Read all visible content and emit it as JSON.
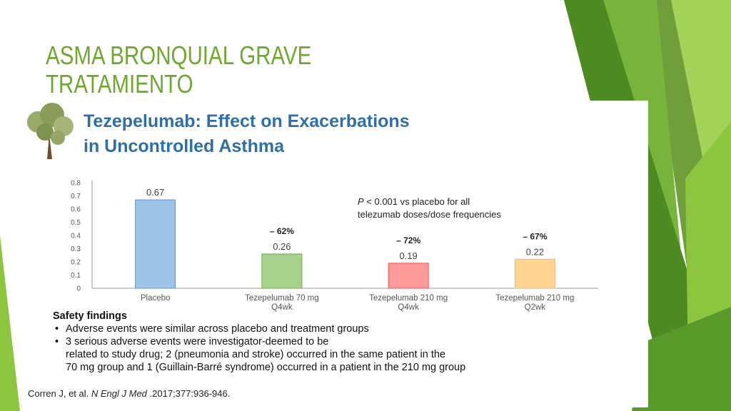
{
  "slide": {
    "title_lines": [
      "ASMA BRONQUIAL GRAVE",
      "TRATAMIENTO"
    ],
    "colors": {
      "title": "#6ea82e",
      "accent_dark": "#4e8a22",
      "accent_light": "#8cc63f"
    }
  },
  "panel": {
    "decoration_icon": "tree-icon",
    "title_lines": [
      "Tezepelumab: Effect on Exacerbations",
      "in Uncontrolled Asthma"
    ],
    "note": {
      "p_symbol": "P",
      "line1_rest": " < 0.001 vs placebo for all",
      "line2": "telezumab doses/dose frequencies"
    },
    "safety": {
      "heading": "Safety findings",
      "bullets": [
        {
          "lines": [
            "Adverse events were similar across placebo and treatment groups"
          ]
        },
        {
          "lines": [
            "3 serious adverse events were investigator-deemed to be",
            "related to study drug; 2 (pneumonia and stroke) occurred in the same patient in the",
            "70 mg group and 1 (Guillain-Barré syndrome) occurred in a patient in the 210 mg group"
          ]
        }
      ]
    },
    "citation": {
      "authors": "Corren J, et al. ",
      "journal": "N Engl J Med",
      "rest": " .2017;377:936-946."
    }
  },
  "chart_data": {
    "type": "bar",
    "title": "Tezepelumab: Effect on Exacerbations in Uncontrolled Asthma",
    "categories": [
      [
        "Placebo"
      ],
      [
        "Tezepelumab 70 mg",
        "Q4wk"
      ],
      [
        "Tezepelumab 210 mg",
        "Q4wk"
      ],
      [
        "Tezepelumab 210 mg",
        "Q2wk"
      ]
    ],
    "values": [
      0.67,
      0.26,
      0.19,
      0.22
    ],
    "value_labels": [
      "0.67",
      "0.26",
      "0.19",
      "0.22"
    ],
    "reduction_labels": [
      "",
      "– 62%",
      "– 72%",
      "– 67%"
    ],
    "bar_colors": [
      "#9dc3e6",
      "#a9d18e",
      "#ff9a9a",
      "#ffd591"
    ],
    "bar_edge_colors": [
      "#5b9bd5",
      "#70ad47",
      "#ff5050",
      "#f4b183"
    ],
    "ylim": [
      0,
      0.8
    ],
    "yticks": [
      "0",
      "0.1",
      "0.2",
      "0.3",
      "0.4",
      "0.5",
      "0.6",
      "0.7",
      "0.8"
    ],
    "xlabel": "",
    "ylabel": "",
    "grid": false,
    "legend": "none"
  }
}
